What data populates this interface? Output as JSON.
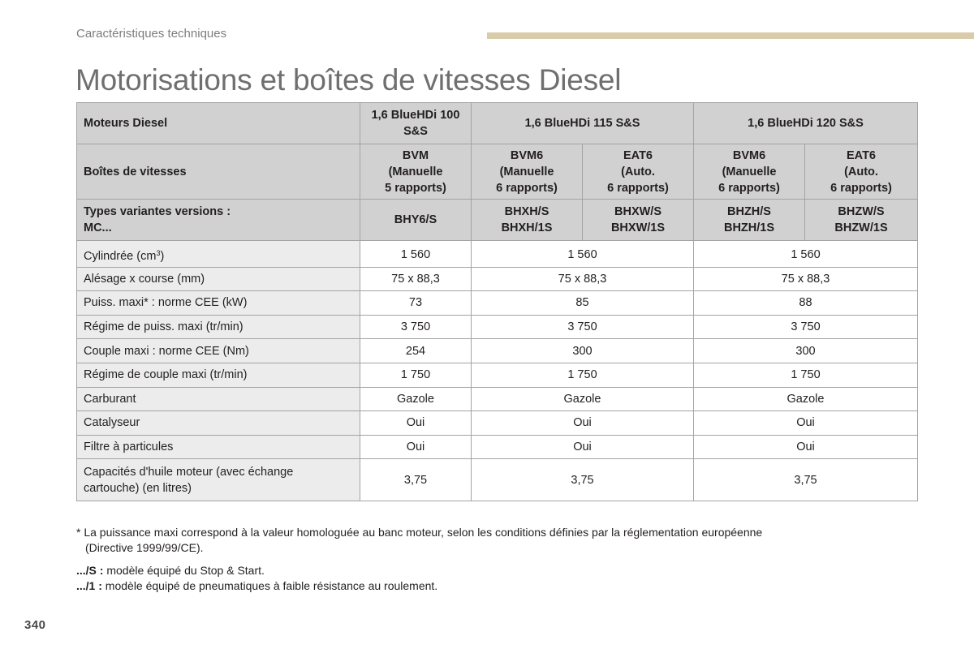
{
  "header": {
    "section": "Caractéristiques techniques",
    "title": "Motorisations et boîtes de vitesses Diesel"
  },
  "table": {
    "engines_label": "Moteurs Diesel",
    "engines": [
      "1,6 BlueHDi 100\nS&S",
      "1,6 BlueHDi 115 S&S",
      "1,6 BlueHDi 120 S&S"
    ],
    "gearbox_label": "Boîtes de vitesses",
    "gearboxes": [
      "BVM\n(Manuelle\n5 rapports)",
      "BVM6\n(Manuelle\n6 rapports)",
      "EAT6\n(Auto.\n6 rapports)",
      "BVM6\n(Manuelle\n6 rapports)",
      "EAT6\n(Auto.\n6 rapports)"
    ],
    "variants_label": "Types variantes versions :\nMC...",
    "variants": [
      "BHY6/S",
      "BHXH/S\nBHXH/1S",
      "BHXW/S\nBHXW/1S",
      "BHZH/S\nBHZH/1S",
      "BHZW/S\nBHZW/1S"
    ],
    "rows": [
      {
        "label": "Cylindrée (cm",
        "label_sup": "3",
        "label_tail": ")",
        "values": [
          "1 560",
          "1 560",
          "1 560"
        ]
      },
      {
        "label": "Alésage x course (mm)",
        "values": [
          "75 x 88,3",
          "75 x 88,3",
          "75 x 88,3"
        ]
      },
      {
        "label": "Puiss. maxi* : norme CEE (kW)",
        "values": [
          "73",
          "85",
          "88"
        ]
      },
      {
        "label": "Régime de puiss. maxi (tr/min)",
        "values": [
          "3 750",
          "3 750",
          "3 750"
        ]
      },
      {
        "label": "Couple maxi : norme CEE (Nm)",
        "values": [
          "254",
          "300",
          "300"
        ]
      },
      {
        "label": "Régime de couple maxi (tr/min)",
        "values": [
          "1 750",
          "1 750",
          "1 750"
        ]
      },
      {
        "label": "Carburant",
        "values": [
          "Gazole",
          "Gazole",
          "Gazole"
        ]
      },
      {
        "label": "Catalyseur",
        "values": [
          "Oui",
          "Oui",
          "Oui"
        ]
      },
      {
        "label": "Filtre à particules",
        "values": [
          "Oui",
          "Oui",
          "Oui"
        ]
      },
      {
        "label": "Capacités d'huile moteur (avec échange\ncartouche) (en litres)",
        "values": [
          "3,75",
          "3,75",
          "3,75"
        ]
      }
    ]
  },
  "footnote": {
    "line1": "* La puissance maxi correspond à la valeur homologuée au banc moteur, selon les conditions définies par la réglementation européenne",
    "line2": "(Directive 1999/99/CE)."
  },
  "legend": [
    {
      "key": ".../S :",
      "text": " modèle équipé du Stop & Start."
    },
    {
      "key": ".../1 :",
      "text": " modèle équipé de pneumatiques à faible résistance au roulement."
    }
  ],
  "page_number": "340",
  "colors": {
    "header_bg": "#d1d1d1",
    "label_column_bg": "#ececec",
    "accent_bar": "#d9ccaa",
    "title_gray": "#6f6f6f"
  }
}
